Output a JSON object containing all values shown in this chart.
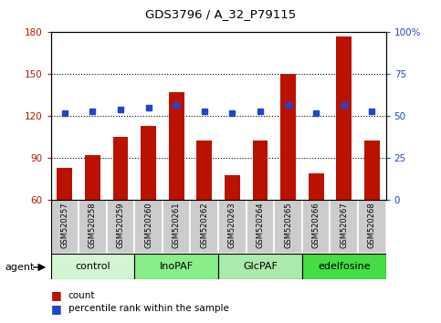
{
  "title": "GDS3796 / A_32_P79115",
  "samples": [
    "GSM520257",
    "GSM520258",
    "GSM520259",
    "GSM520260",
    "GSM520261",
    "GSM520262",
    "GSM520263",
    "GSM520264",
    "GSM520265",
    "GSM520266",
    "GSM520267",
    "GSM520268"
  ],
  "counts": [
    83,
    92,
    105,
    113,
    137,
    103,
    78,
    103,
    150,
    79,
    177,
    103
  ],
  "percentile": [
    52,
    53,
    54,
    55,
    57,
    53,
    52,
    53,
    57,
    52,
    57,
    53
  ],
  "groups": [
    {
      "label": "control",
      "start": 0,
      "end": 3,
      "color": "#d4f5d4"
    },
    {
      "label": "InoPAF",
      "start": 3,
      "end": 6,
      "color": "#88ee88"
    },
    {
      "label": "GlcPAF",
      "start": 6,
      "end": 9,
      "color": "#aaeaaa"
    },
    {
      "label": "edelfosine",
      "start": 9,
      "end": 12,
      "color": "#44dd44"
    }
  ],
  "ylim_left": [
    60,
    180
  ],
  "ylim_right": [
    0,
    100
  ],
  "yticks_left": [
    60,
    90,
    120,
    150,
    180
  ],
  "yticks_right": [
    0,
    25,
    50,
    75,
    100
  ],
  "right_ytick_labels": [
    "0",
    "25",
    "50",
    "75",
    "100%"
  ],
  "bar_color": "#bb1100",
  "dot_color": "#2244cc",
  "sample_box_color": "#cccccc",
  "agent_label": "agent",
  "legend_count_color": "#bb1100",
  "legend_dot_color": "#2244cc"
}
